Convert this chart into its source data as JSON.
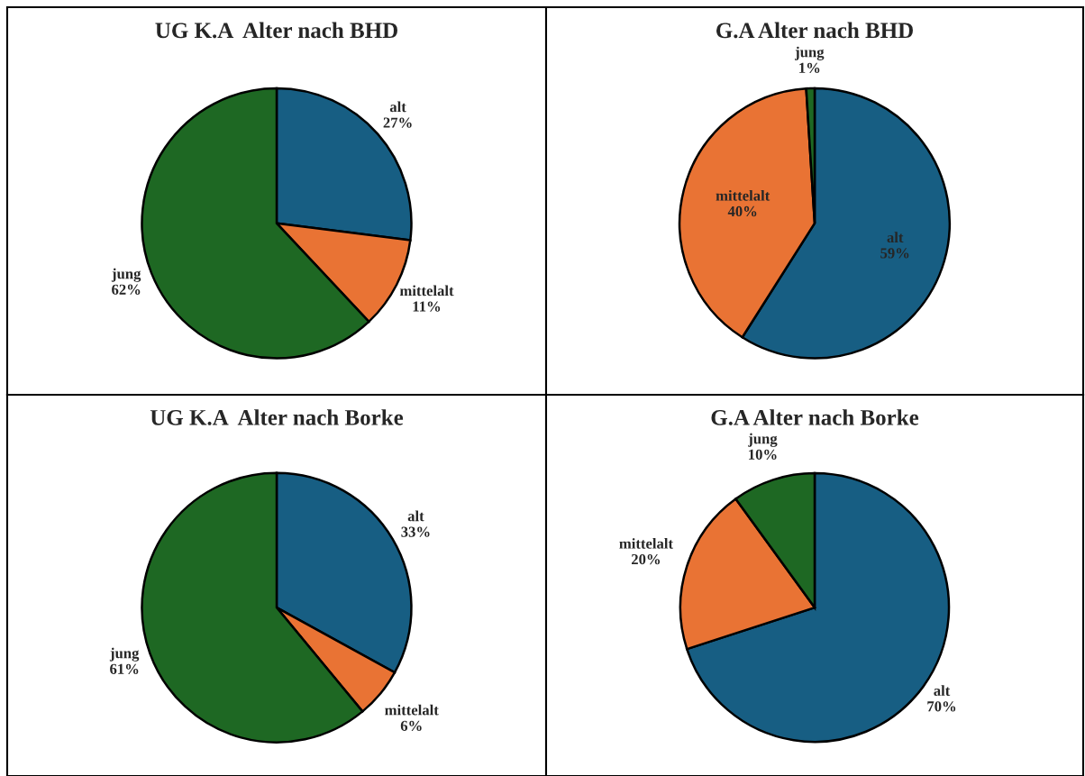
{
  "chart_data": [
    {
      "type": "pie",
      "title": "UG K.A  Alter nach BHD",
      "categories": [
        "alt",
        "mittelalt",
        "jung"
      ],
      "values": [
        27,
        11,
        62
      ],
      "value_labels": [
        "27%",
        "11%",
        "62%"
      ],
      "colors": [
        "#175e83",
        "#e97334",
        "#1e6823"
      ],
      "legend": false
    },
    {
      "type": "pie",
      "title": "G.A Alter nach BHD",
      "categories": [
        "alt",
        "mittelalt",
        "jung"
      ],
      "values": [
        59,
        40,
        1
      ],
      "value_labels": [
        "59%",
        "40%",
        "1%"
      ],
      "colors": [
        "#175e83",
        "#e97334",
        "#1e6823"
      ],
      "legend": false
    },
    {
      "type": "pie",
      "title": "UG K.A  Alter nach Borke",
      "categories": [
        "alt",
        "mittelalt",
        "jung"
      ],
      "values": [
        33,
        6,
        61
      ],
      "value_labels": [
        "33%",
        "6%",
        "61%"
      ],
      "colors": [
        "#175e83",
        "#e97334",
        "#1e6823"
      ],
      "legend": false
    },
    {
      "type": "pie",
      "title": "G.A Alter nach Borke",
      "categories": [
        "alt",
        "mittelalt",
        "jung"
      ],
      "values": [
        70,
        20,
        10
      ],
      "value_labels": [
        "70%",
        "20%",
        "10%"
      ],
      "colors": [
        "#175e83",
        "#e97334",
        "#1e6823"
      ],
      "legend": false
    }
  ]
}
